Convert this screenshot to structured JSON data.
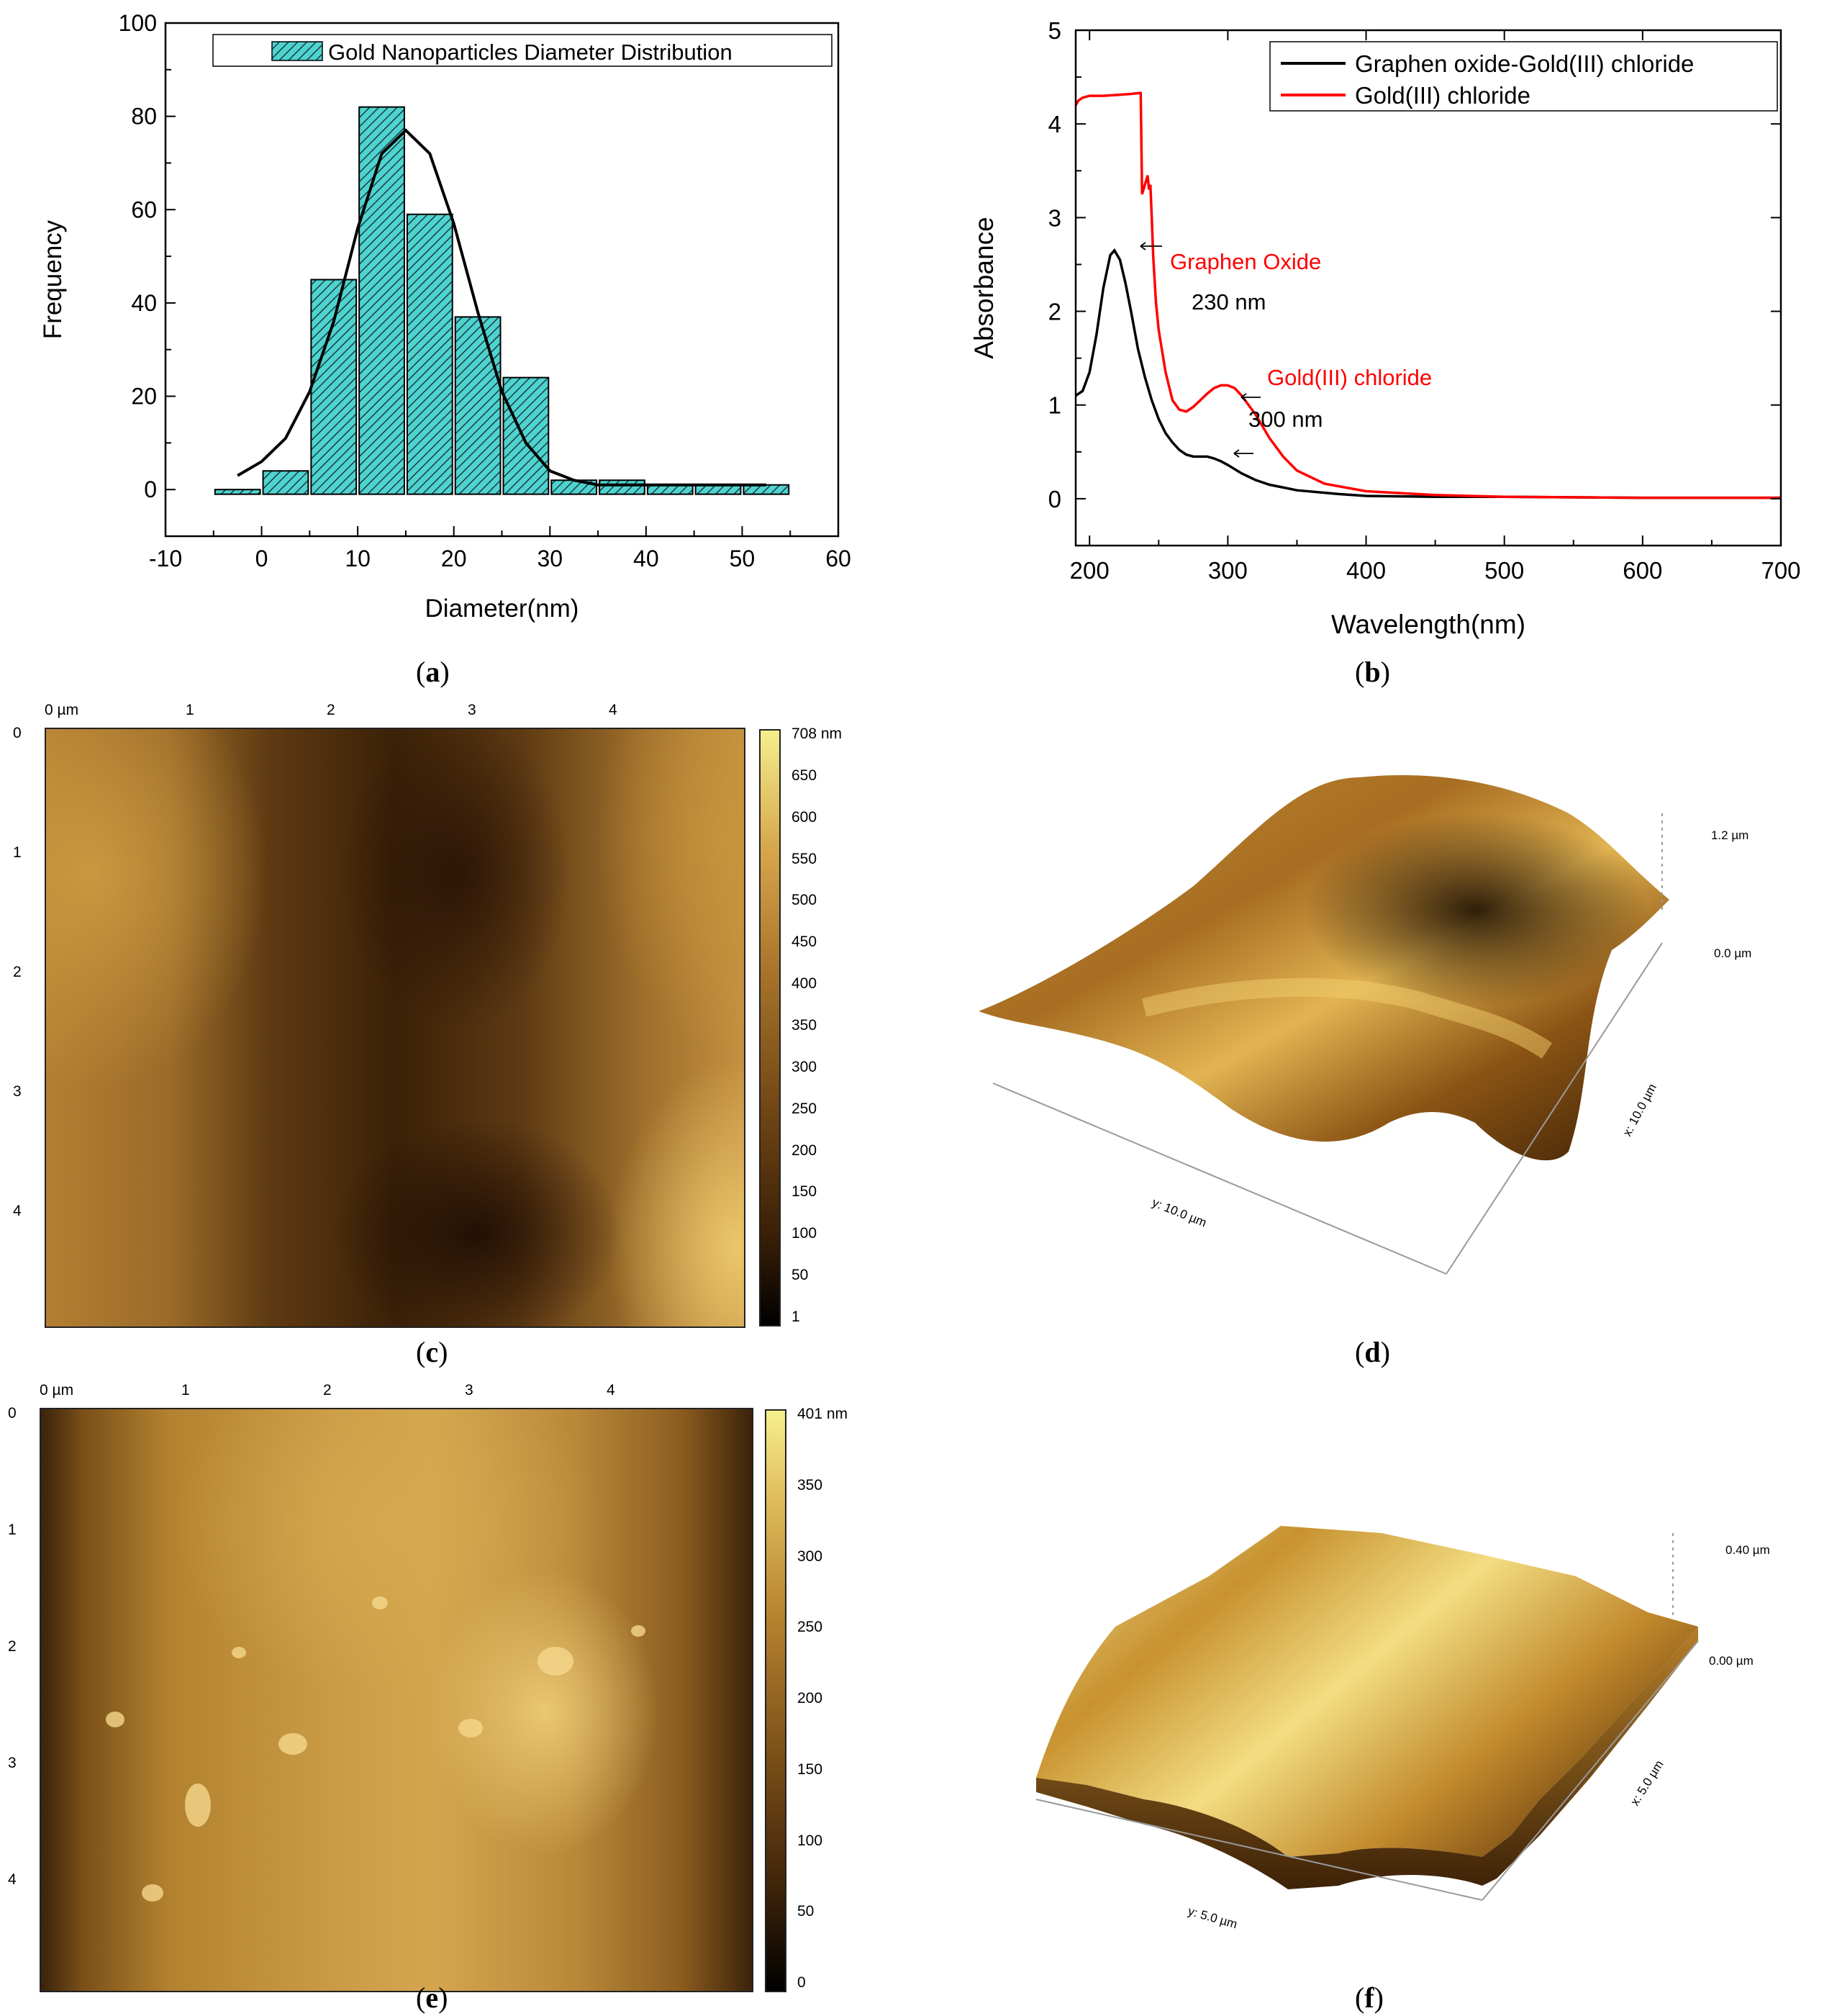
{
  "chart_data": [
    {
      "id": "a",
      "type": "bar",
      "title": "",
      "legend": "Gold Nanoparticles Diameter Distribution",
      "xlabel": "Diameter(nm)",
      "ylabel": "Frequency",
      "xlim": [
        -10,
        60
      ],
      "ylim": [
        -10,
        100
      ],
      "xticks": [
        -10,
        0,
        10,
        20,
        30,
        40,
        50,
        60
      ],
      "yticks": [
        0,
        20,
        40,
        60,
        80,
        100
      ],
      "bin_centers": [
        -2.5,
        2.5,
        7.5,
        12.5,
        17.5,
        22.5,
        27.5,
        32.5,
        37.5,
        42.5,
        47.5,
        52.5
      ],
      "bin_width": 5,
      "values": [
        0,
        4,
        45,
        82,
        59,
        37,
        24,
        2,
        2,
        1,
        1,
        1
      ],
      "fit_curve": {
        "type": "gaussian",
        "x": [
          -2.5,
          0,
          2.5,
          5,
          7.5,
          10,
          12.5,
          15,
          17.5,
          20,
          22.5,
          25,
          27.5,
          30,
          32.5,
          35,
          37.5,
          40,
          42.5,
          45,
          47.5,
          50,
          52.5
        ],
        "y": [
          3,
          6,
          11,
          21,
          36,
          56,
          72,
          77,
          72,
          57,
          38,
          21,
          10,
          4,
          2,
          1,
          1,
          1,
          1,
          1,
          1,
          1,
          1
        ]
      },
      "caption_letter": "a"
    },
    {
      "id": "b",
      "type": "line",
      "xlabel": "Wavelength(nm)",
      "ylabel": "Absorbance",
      "xlim": [
        190,
        700
      ],
      "ylim": [
        -0.5,
        5
      ],
      "xticks": [
        200,
        300,
        400,
        500,
        600,
        700
      ],
      "yticks": [
        0,
        1,
        2,
        3,
        4,
        5
      ],
      "series": [
        {
          "name": "Graphen oxide-Gold(III) chloride",
          "color": "#000000",
          "x": [
            190,
            195,
            200,
            205,
            210,
            215,
            218,
            222,
            226,
            230,
            235,
            240,
            245,
            250,
            255,
            260,
            265,
            270,
            275,
            280,
            285,
            290,
            295,
            300,
            310,
            320,
            330,
            350,
            380,
            400,
            450,
            500,
            600,
            700
          ],
          "y": [
            1.1,
            1.15,
            1.35,
            1.75,
            2.25,
            2.6,
            2.65,
            2.55,
            2.3,
            2.0,
            1.6,
            1.3,
            1.05,
            0.85,
            0.7,
            0.6,
            0.52,
            0.47,
            0.45,
            0.45,
            0.45,
            0.43,
            0.4,
            0.36,
            0.27,
            0.2,
            0.15,
            0.09,
            0.05,
            0.03,
            0.02,
            0.02,
            0.01,
            0.01
          ]
        },
        {
          "name": "Gold(III) chloride",
          "color": "#ff0000",
          "x": [
            190,
            192,
            195,
            200,
            210,
            220,
            230,
            236,
            237,
            238,
            240,
            242,
            243,
            244,
            245,
            246,
            248,
            250,
            255,
            260,
            265,
            270,
            275,
            280,
            285,
            290,
            295,
            300,
            305,
            310,
            320,
            330,
            340,
            350,
            370,
            400,
            450,
            500,
            600,
            700
          ],
          "y": [
            4.2,
            4.25,
            4.28,
            4.3,
            4.3,
            4.31,
            4.32,
            4.33,
            4.33,
            3.25,
            3.35,
            3.45,
            3.3,
            3.35,
            3.0,
            2.6,
            2.1,
            1.8,
            1.35,
            1.05,
            0.95,
            0.93,
            0.98,
            1.05,
            1.12,
            1.18,
            1.21,
            1.21,
            1.18,
            1.1,
            0.9,
            0.65,
            0.45,
            0.3,
            0.16,
            0.08,
            0.04,
            0.02,
            0.01,
            0.01
          ]
        }
      ],
      "annotations": [
        {
          "text": "Graphen Oxide",
          "color": "#ff0000"
        },
        {
          "text": "230 nm",
          "color": "#000000"
        },
        {
          "text": "Gold(III) chloride",
          "color": "#ff0000"
        },
        {
          "text": "300 nm",
          "color": "#000000"
        }
      ],
      "caption_letter": "b"
    }
  ],
  "afm_c": {
    "x_ticks": [
      "0 µm",
      "1",
      "2",
      "3",
      "4"
    ],
    "y_ticks": [
      "0",
      "1",
      "2",
      "3",
      "4"
    ],
    "colorbar_ticks": [
      "708 nm",
      "650",
      "600",
      "550",
      "500",
      "450",
      "400",
      "350",
      "300",
      "250",
      "200",
      "150",
      "100",
      "50",
      "1"
    ],
    "caption_letter": "c"
  },
  "afm_d": {
    "z_top": "1.2 µm",
    "z_bottom": "0.0 µm",
    "x_axis": "x: 10.0 µm",
    "y_axis": "y: 10.0 µm",
    "caption_letter": "d"
  },
  "afm_e": {
    "x_ticks": [
      "0 µm",
      "1",
      "2",
      "3",
      "4"
    ],
    "y_ticks": [
      "0",
      "1",
      "2",
      "3",
      "4"
    ],
    "colorbar_ticks": [
      "401 nm",
      "350",
      "300",
      "250",
      "200",
      "150",
      "100",
      "50",
      "0"
    ],
    "caption_letter": "e"
  },
  "afm_f": {
    "z_top": "0.40 µm",
    "z_bottom": "0.00 µm",
    "x_axis": "x: 5.0 µm",
    "y_axis": "y: 5.0 µm",
    "caption_letter": "f"
  }
}
